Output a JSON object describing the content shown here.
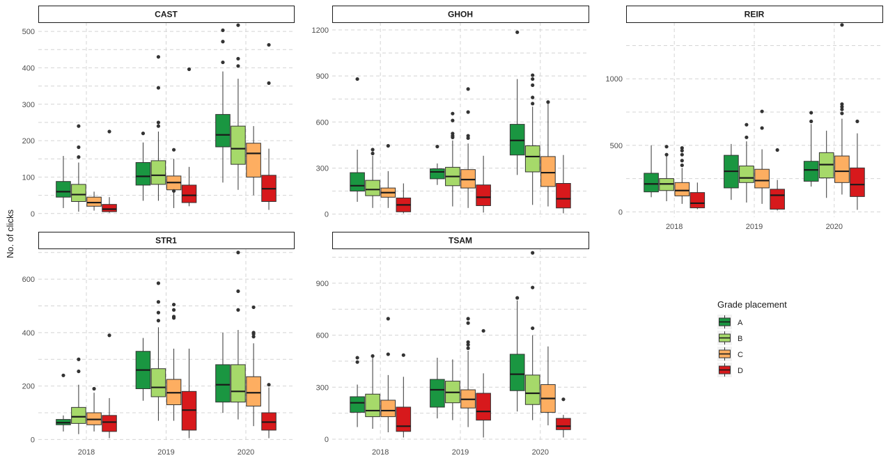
{
  "chart_data": {
    "type": "boxplot",
    "ylabel": "No. of clicks",
    "xlabel": "",
    "categories": [
      "2018",
      "2019",
      "2020"
    ],
    "legend": {
      "title": "Grade placement",
      "position": "right",
      "entries": [
        "A",
        "B",
        "C",
        "D"
      ]
    },
    "colors": {
      "A": "#1a9641",
      "B": "#a6d96a",
      "C": "#fdae61",
      "D": "#d7191c"
    },
    "grid": "dashed",
    "panels": [
      {
        "name": "CAST",
        "ylim": [
          -10,
          525
        ],
        "yticks": [
          0,
          100,
          200,
          300,
          400,
          500
        ],
        "show_x_ticks": false,
        "series": [
          {
            "name": "A",
            "boxes": [
              {
                "min": 15,
                "q1": 45,
                "median": 60,
                "q3": 88,
                "max": 158,
                "outliers": []
              },
              {
                "min": 35,
                "q1": 78,
                "median": 102,
                "q3": 140,
                "max": 195,
                "outliers": [
                  220
                ]
              },
              {
                "min": 85,
                "q1": 183,
                "median": 216,
                "q3": 272,
                "max": 390,
                "outliers": [
                  415,
                  472,
                  503
                ]
              }
            ]
          },
          {
            "name": "B",
            "boxes": [
              {
                "min": 5,
                "q1": 33,
                "median": 52,
                "q3": 80,
                "max": 140,
                "outliers": [
                  155,
                  182,
                  240
                ]
              },
              {
                "min": 35,
                "q1": 80,
                "median": 105,
                "q3": 145,
                "max": 225,
                "outliers": [
                  240,
                  250,
                  345,
                  430
                ]
              },
              {
                "min": 65,
                "q1": 135,
                "median": 178,
                "q3": 240,
                "max": 370,
                "outliers": [
                  405,
                  425,
                  517
                ]
              }
            ]
          },
          {
            "name": "C",
            "boxes": [
              {
                "min": 8,
                "q1": 20,
                "median": 30,
                "q3": 45,
                "max": 60,
                "outliers": []
              },
              {
                "min": 15,
                "q1": 65,
                "median": 85,
                "q3": 103,
                "max": 150,
                "outliers": [
                  62,
                  175
                ]
              },
              {
                "min": 50,
                "q1": 100,
                "median": 165,
                "q3": 193,
                "max": 240,
                "outliers": []
              }
            ]
          },
          {
            "name": "D",
            "boxes": [
              {
                "min": 2,
                "q1": 5,
                "median": 12,
                "q3": 25,
                "max": 45,
                "outliers": [
                  225
                ]
              },
              {
                "min": 20,
                "q1": 30,
                "median": 50,
                "q3": 78,
                "max": 128,
                "outliers": [
                  396
                ]
              },
              {
                "min": 10,
                "q1": 33,
                "median": 68,
                "q3": 105,
                "max": 178,
                "outliers": [
                  358,
                  463
                ]
              }
            ]
          }
        ]
      },
      {
        "name": "GHOH",
        "ylim": [
          -20,
          1250
        ],
        "yticks": [
          0,
          300,
          600,
          900,
          1200
        ],
        "show_x_ticks": false,
        "series": [
          {
            "name": "A",
            "boxes": [
              {
                "min": 80,
                "q1": 150,
                "median": 185,
                "q3": 270,
                "max": 420,
                "outliers": [
                  880
                ]
              },
              {
                "min": 190,
                "q1": 230,
                "median": 275,
                "q3": 295,
                "max": 330,
                "outliers": [
                  440
                ]
              },
              {
                "min": 255,
                "q1": 385,
                "median": 480,
                "q3": 585,
                "max": 880,
                "outliers": [
                  1185
                ]
              }
            ]
          },
          {
            "name": "B",
            "boxes": [
              {
                "min": 40,
                "q1": 120,
                "median": 160,
                "q3": 220,
                "max": 380,
                "outliers": [
                  395,
                  420
                ]
              },
              {
                "min": 50,
                "q1": 185,
                "median": 245,
                "q3": 305,
                "max": 480,
                "outliers": [
                  500,
                  510,
                  525,
                  610,
                  655
                ]
              },
              {
                "min": 60,
                "q1": 275,
                "median": 375,
                "q3": 445,
                "max": 700,
                "outliers": [
                  720,
                  760,
                  840,
                  880,
                  905
                ]
              }
            ]
          },
          {
            "name": "C",
            "boxes": [
              {
                "min": 40,
                "q1": 110,
                "median": 140,
                "q3": 170,
                "max": 280,
                "outliers": [
                  445
                ]
              },
              {
                "min": 40,
                "q1": 170,
                "median": 225,
                "q3": 290,
                "max": 460,
                "outliers": [
                  495,
                  510,
                  665,
                  815
                ]
              },
              {
                "min": 50,
                "q1": 180,
                "median": 270,
                "q3": 375,
                "max": 720,
                "outliers": [
                  730
                ]
              }
            ]
          },
          {
            "name": "D",
            "boxes": [
              {
                "min": 5,
                "q1": 15,
                "median": 60,
                "q3": 105,
                "max": 200,
                "outliers": []
              },
              {
                "min": 10,
                "q1": 55,
                "median": 110,
                "q3": 190,
                "max": 380,
                "outliers": []
              },
              {
                "min": 5,
                "q1": 40,
                "median": 100,
                "q3": 200,
                "max": 385,
                "outliers": []
              }
            ]
          }
        ]
      },
      {
        "name": "REIR",
        "ylim": [
          -40,
          1425
        ],
        "yticks": [
          0,
          500,
          1000
        ],
        "show_x_ticks": true,
        "series": [
          {
            "name": "A",
            "boxes": [
              {
                "min": 110,
                "q1": 150,
                "median": 210,
                "q3": 290,
                "max": 500,
                "outliers": []
              },
              {
                "min": 90,
                "q1": 180,
                "median": 305,
                "q3": 425,
                "max": 510,
                "outliers": []
              },
              {
                "min": 190,
                "q1": 230,
                "median": 315,
                "q3": 380,
                "max": 660,
                "outliers": [
                  680,
                  745
                ]
              }
            ]
          },
          {
            "name": "B",
            "boxes": [
              {
                "min": 80,
                "q1": 160,
                "median": 210,
                "q3": 250,
                "max": 420,
                "outliers": [
                  430,
                  490
                ]
              },
              {
                "min": 70,
                "q1": 220,
                "median": 255,
                "q3": 345,
                "max": 530,
                "outliers": [
                  560,
                  655
                ]
              },
              {
                "min": 105,
                "q1": 255,
                "median": 355,
                "q3": 445,
                "max": 610,
                "outliers": []
              }
            ]
          },
          {
            "name": "C",
            "boxes": [
              {
                "min": 60,
                "q1": 120,
                "median": 160,
                "q3": 220,
                "max": 330,
                "outliers": [
                  350,
                  385,
                  430,
                  460,
                  480
                ]
              },
              {
                "min": 60,
                "q1": 180,
                "median": 235,
                "q3": 320,
                "max": 470,
                "outliers": [
                  630,
                  755
                ]
              },
              {
                "min": 130,
                "q1": 220,
                "median": 305,
                "q3": 420,
                "max": 700,
                "outliers": [
                  740,
                  770,
                  790,
                  810,
                  1405
                ]
              }
            ]
          },
          {
            "name": "D",
            "boxes": [
              {
                "min": 20,
                "q1": 30,
                "median": 65,
                "q3": 145,
                "max": 220,
                "outliers": []
              },
              {
                "min": 10,
                "q1": 20,
                "median": 125,
                "q3": 170,
                "max": 240,
                "outliers": [
                  465
                ]
              },
              {
                "min": 15,
                "q1": 115,
                "median": 205,
                "q3": 330,
                "max": 590,
                "outliers": [
                  680
                ]
              }
            ]
          }
        ]
      },
      {
        "name": "STR1",
        "ylim": [
          -12,
          715
        ],
        "yticks": [
          0,
          200,
          400,
          600
        ],
        "show_x_ticks": true,
        "series": [
          {
            "name": "A",
            "boxes": [
              {
                "min": 30,
                "q1": 55,
                "median": 63,
                "q3": 75,
                "max": 90,
                "outliers": [
                  240
                ]
              },
              {
                "min": 145,
                "q1": 190,
                "median": 260,
                "q3": 330,
                "max": 380,
                "outliers": []
              },
              {
                "min": 100,
                "q1": 140,
                "median": 205,
                "q3": 280,
                "max": 400,
                "outliers": []
              }
            ]
          },
          {
            "name": "B",
            "boxes": [
              {
                "min": 20,
                "q1": 60,
                "median": 85,
                "q3": 120,
                "max": 205,
                "outliers": [
                  255,
                  300
                ]
              },
              {
                "min": 70,
                "q1": 160,
                "median": 195,
                "q3": 265,
                "max": 420,
                "outliers": [
                  445,
                  475,
                  515,
                  585
                ]
              },
              {
                "min": 75,
                "q1": 140,
                "median": 180,
                "q3": 280,
                "max": 410,
                "outliers": [
                  485,
                  555,
                  700
                ]
              }
            ]
          },
          {
            "name": "C",
            "boxes": [
              {
                "min": 30,
                "q1": 55,
                "median": 75,
                "q3": 100,
                "max": 175,
                "outliers": [
                  190
                ]
              },
              {
                "min": 70,
                "q1": 130,
                "median": 175,
                "q3": 225,
                "max": 340,
                "outliers": [
                  455,
                  460,
                  485,
                  505
                ]
              },
              {
                "min": 50,
                "q1": 125,
                "median": 175,
                "q3": 235,
                "max": 360,
                "outliers": [
                  385,
                  395,
                  400,
                  495
                ]
              }
            ]
          },
          {
            "name": "D",
            "boxes": [
              {
                "min": 5,
                "q1": 30,
                "median": 65,
                "q3": 90,
                "max": 155,
                "outliers": [
                  390
                ]
              },
              {
                "min": 5,
                "q1": 35,
                "median": 110,
                "q3": 180,
                "max": 340,
                "outliers": []
              },
              {
                "min": 5,
                "q1": 35,
                "median": 65,
                "q3": 100,
                "max": 195,
                "outliers": [
                  205
                ]
              }
            ]
          }
        ]
      },
      {
        "name": "TSAM",
        "ylim": [
          -20,
          1100
        ],
        "yticks": [
          0,
          300,
          600,
          900
        ],
        "show_x_ticks": true,
        "series": [
          {
            "name": "A",
            "boxes": [
              {
                "min": 70,
                "q1": 155,
                "median": 210,
                "q3": 245,
                "max": 315,
                "outliers": [
                  445,
                  470
                ]
              },
              {
                "min": 120,
                "q1": 185,
                "median": 285,
                "q3": 345,
                "max": 470,
                "outliers": []
              },
              {
                "min": 160,
                "q1": 280,
                "median": 375,
                "q3": 490,
                "max": 800,
                "outliers": [
                  815
                ]
              }
            ]
          },
          {
            "name": "B",
            "boxes": [
              {
                "min": 60,
                "q1": 130,
                "median": 165,
                "q3": 260,
                "max": 470,
                "outliers": [
                  480
                ]
              },
              {
                "min": 110,
                "q1": 210,
                "median": 270,
                "q3": 335,
                "max": 460,
                "outliers": []
              },
              {
                "min": 110,
                "q1": 200,
                "median": 265,
                "q3": 370,
                "max": 600,
                "outliers": [
                  640,
                  875,
                  1075
                ]
              }
            ]
          },
          {
            "name": "C",
            "boxes": [
              {
                "min": 40,
                "q1": 130,
                "median": 165,
                "q3": 225,
                "max": 370,
                "outliers": [
                  490,
                  695
                ]
              },
              {
                "min": 70,
                "q1": 180,
                "median": 230,
                "q3": 285,
                "max": 510,
                "outliers": [
                  525,
                  545,
                  560,
                  670,
                  695
                ]
              },
              {
                "min": 80,
                "q1": 155,
                "median": 235,
                "q3": 315,
                "max": 535,
                "outliers": []
              }
            ]
          },
          {
            "name": "D",
            "boxes": [
              {
                "min": 10,
                "q1": 45,
                "median": 75,
                "q3": 185,
                "max": 360,
                "outliers": [
                  485
                ]
              },
              {
                "min": 10,
                "q1": 110,
                "median": 160,
                "q3": 265,
                "max": 380,
                "outliers": [
                  625
                ]
              },
              {
                "min": 10,
                "q1": 55,
                "median": 75,
                "q3": 120,
                "max": 140,
                "outliers": [
                  230
                ]
              }
            ]
          }
        ]
      }
    ]
  }
}
